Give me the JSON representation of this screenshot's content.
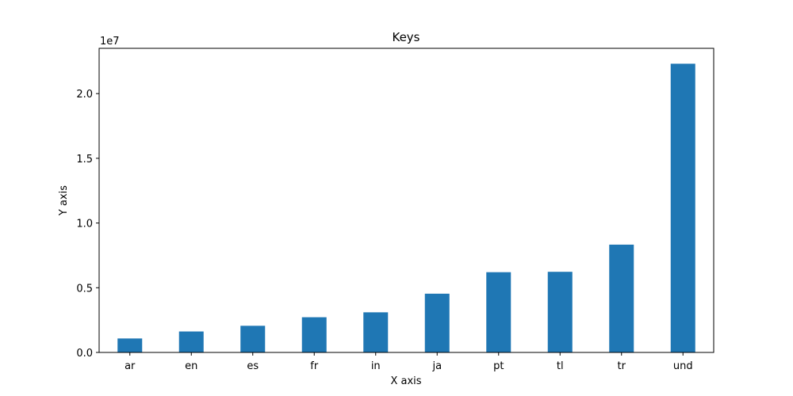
{
  "chart_data": {
    "type": "bar",
    "title": "Keys",
    "xlabel": "X axis",
    "ylabel": "Y axis",
    "y_scale_label": "1e7",
    "categories": [
      "ar",
      "en",
      "es",
      "fr",
      "in",
      "ja",
      "pt",
      "tl",
      "tr",
      "und"
    ],
    "values": [
      1080000,
      1620000,
      2060000,
      2720000,
      3100000,
      4540000,
      6200000,
      6230000,
      8330000,
      22310000
    ],
    "ylim": [
      0,
      23500000
    ],
    "yticks": [
      0,
      5000000,
      10000000,
      15000000,
      20000000
    ],
    "ytick_labels": [
      "0.0",
      "0.5",
      "1.0",
      "1.5",
      "2.0"
    ],
    "bar_color": "#1f77b4",
    "grid": false,
    "legend": "none"
  }
}
